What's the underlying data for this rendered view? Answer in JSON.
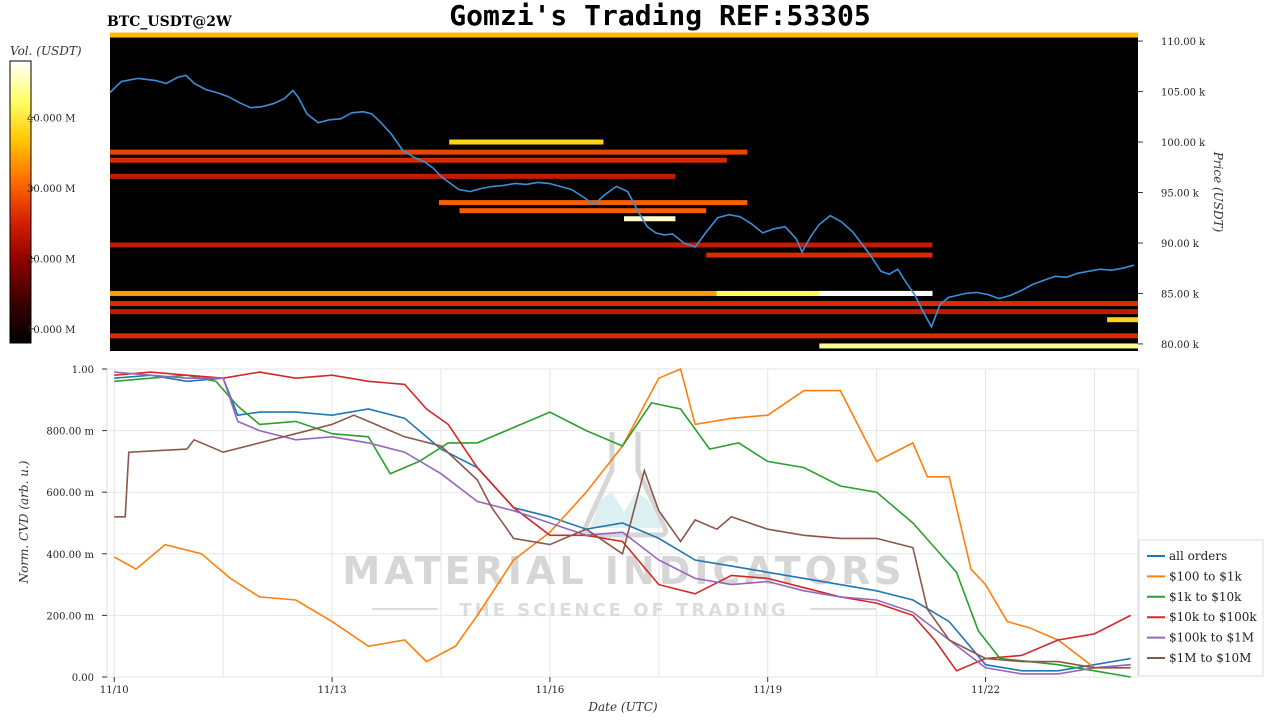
{
  "header": {
    "title": "Gomzi's Trading REF:53305",
    "pair": "BTC_USDT@2W"
  },
  "watermark": {
    "line1": "MATERIAL INDICATORS",
    "line2": "THE SCIENCE OF TRADING"
  },
  "chart_data": [
    {
      "type": "heatmap",
      "colorbar": {
        "label": "Vol. (USDT)",
        "ticks": [
          "10.000 M",
          "20.000 M",
          "30.000 M",
          "40.000 M"
        ],
        "tick_values": [
          10,
          20,
          30,
          40
        ],
        "range": [
          8,
          48
        ],
        "colors": [
          "#000000",
          "#3a0000",
          "#8b0000",
          "#d42000",
          "#ff6a00",
          "#ffc400",
          "#ffff66",
          "#ffffff"
        ]
      },
      "y_axis": {
        "label": "Price (USDT)",
        "ticks": [
          "110.00 k",
          "105.00 k",
          "100.00 k",
          "95.00 k",
          "90.00 k",
          "85.00 k",
          "80.00 k"
        ],
        "tick_values": [
          110,
          105,
          100,
          95,
          90,
          85,
          80
        ],
        "range": [
          79.3,
          110.8
        ]
      },
      "x_range_days": [
        0,
        14.1
      ],
      "price_series": {
        "color": "#3b8fd9",
        "points": [
          [
            0,
            104.9
          ],
          [
            0.2,
            106
          ],
          [
            0.5,
            106.3
          ],
          [
            0.8,
            106.1
          ],
          [
            1.0,
            105.8
          ],
          [
            1.2,
            106.4
          ],
          [
            1.35,
            106.6
          ],
          [
            1.5,
            105.8
          ],
          [
            1.7,
            105.2
          ],
          [
            1.9,
            104.9
          ],
          [
            2.1,
            104.5
          ],
          [
            2.3,
            103.9
          ],
          [
            2.5,
            103.4
          ],
          [
            2.7,
            103.5
          ],
          [
            2.9,
            103.8
          ],
          [
            3.1,
            104.3
          ],
          [
            3.25,
            105.1
          ],
          [
            3.35,
            104.4
          ],
          [
            3.5,
            102.8
          ],
          [
            3.7,
            101.9
          ],
          [
            3.9,
            102.2
          ],
          [
            4.1,
            102.3
          ],
          [
            4.3,
            102.9
          ],
          [
            4.5,
            103.0
          ],
          [
            4.65,
            102.8
          ],
          [
            4.8,
            102.0
          ],
          [
            5.0,
            100.8
          ],
          [
            5.2,
            99.2
          ],
          [
            5.4,
            98.5
          ],
          [
            5.6,
            98.0
          ],
          [
            5.75,
            97.4
          ],
          [
            5.9,
            96.5
          ],
          [
            6.05,
            95.9
          ],
          [
            6.2,
            95.3
          ],
          [
            6.4,
            95.1
          ],
          [
            6.6,
            95.4
          ],
          [
            6.8,
            95.6
          ],
          [
            7.0,
            95.7
          ],
          [
            7.2,
            95.9
          ],
          [
            7.4,
            95.8
          ],
          [
            7.6,
            96.0
          ],
          [
            7.8,
            95.9
          ],
          [
            8.0,
            95.6
          ],
          [
            8.2,
            95.3
          ],
          [
            8.4,
            94.6
          ],
          [
            8.6,
            93.8
          ],
          [
            8.8,
            94.8
          ],
          [
            9.0,
            95.6
          ],
          [
            9.2,
            95.1
          ],
          [
            9.4,
            93.0
          ],
          [
            9.55,
            91.6
          ],
          [
            9.7,
            91.0
          ],
          [
            9.85,
            90.8
          ],
          [
            10.0,
            90.9
          ],
          [
            10.2,
            90.0
          ],
          [
            10.4,
            89.6
          ],
          [
            10.6,
            91.1
          ],
          [
            10.8,
            92.5
          ],
          [
            11.0,
            92.8
          ],
          [
            11.2,
            92.6
          ],
          [
            11.4,
            91.9
          ],
          [
            11.6,
            91.0
          ],
          [
            11.8,
            91.4
          ],
          [
            12.0,
            91.6
          ],
          [
            12.2,
            90.4
          ],
          [
            12.3,
            89.1
          ],
          [
            12.45,
            90.6
          ],
          [
            12.6,
            91.8
          ],
          [
            12.8,
            92.7
          ],
          [
            13.0,
            92.1
          ],
          [
            13.2,
            91.1
          ],
          [
            13.35,
            90.0
          ],
          [
            13.5,
            88.9
          ],
          [
            13.7,
            87.2
          ],
          [
            13.85,
            86.9
          ],
          [
            14.0,
            87.4
          ],
          [
            14.15,
            86.1
          ],
          [
            14.3,
            84.9
          ],
          [
            14.45,
            83.2
          ],
          [
            14.6,
            81.7
          ],
          [
            14.75,
            83.9
          ],
          [
            14.9,
            84.6
          ],
          [
            15.05,
            84.8
          ],
          [
            15.2,
            85.0
          ],
          [
            15.4,
            85.1
          ],
          [
            15.6,
            84.9
          ],
          [
            15.8,
            84.5
          ],
          [
            16.0,
            84.8
          ],
          [
            16.2,
            85.3
          ],
          [
            16.4,
            85.9
          ],
          [
            16.6,
            86.3
          ],
          [
            16.8,
            86.7
          ],
          [
            17.0,
            86.6
          ],
          [
            17.2,
            87.0
          ],
          [
            17.4,
            87.2
          ],
          [
            17.6,
            87.4
          ],
          [
            17.8,
            87.3
          ],
          [
            18.0,
            87.5
          ],
          [
            18.2,
            87.8
          ]
        ],
        "x_scale_note": "points normalized over 0-18.2 span"
      },
      "liquidity_bands": [
        {
          "price": 110.6,
          "start": 0.0,
          "end": 1.0,
          "intensity": 0.7
        },
        {
          "price": 100.0,
          "start": 0.33,
          "end": 0.48,
          "intensity": 0.75
        },
        {
          "price": 99.0,
          "start": 0.0,
          "end": 0.62,
          "intensity": 0.5
        },
        {
          "price": 98.2,
          "start": 0.0,
          "end": 0.6,
          "intensity": 0.45
        },
        {
          "price": 96.6,
          "start": 0.0,
          "end": 0.55,
          "intensity": 0.4
        },
        {
          "price": 94.0,
          "start": 0.32,
          "end": 0.62,
          "intensity": 0.55
        },
        {
          "price": 93.2,
          "start": 0.34,
          "end": 0.58,
          "intensity": 0.55
        },
        {
          "price": 92.4,
          "start": 0.5,
          "end": 0.55,
          "intensity": 0.95
        },
        {
          "price": 89.8,
          "start": 0.0,
          "end": 0.8,
          "intensity": 0.4
        },
        {
          "price": 88.8,
          "start": 0.58,
          "end": 0.8,
          "intensity": 0.45
        },
        {
          "price": 85.0,
          "start": 0.0,
          "end": 0.8,
          "intensity": 0.65
        },
        {
          "price": 85.0,
          "start": 0.59,
          "end": 0.8,
          "intensity": 0.85
        },
        {
          "price": 85.0,
          "start": 0.69,
          "end": 0.8,
          "intensity": 1.0
        },
        {
          "price": 84.0,
          "start": 0.0,
          "end": 1.0,
          "intensity": 0.45
        },
        {
          "price": 83.2,
          "start": 0.0,
          "end": 1.0,
          "intensity": 0.4
        },
        {
          "price": 82.4,
          "start": 0.97,
          "end": 1.0,
          "intensity": 0.75
        },
        {
          "price": 80.8,
          "start": 0.0,
          "end": 1.0,
          "intensity": 0.45
        },
        {
          "price": 79.8,
          "start": 0.69,
          "end": 1.0,
          "intensity": 0.9
        }
      ]
    },
    {
      "type": "line",
      "y_axis": {
        "label": "Norm. CVD (arb. u.)",
        "ticks": [
          "0.00",
          "200.00 m",
          "400.00 m",
          "600.00 m",
          "800.00 m",
          "1.00"
        ],
        "tick_values": [
          0,
          0.2,
          0.4,
          0.6,
          0.8,
          1.0
        ],
        "range": [
          0,
          1.0
        ]
      },
      "x_axis": {
        "label": "Date (UTC)",
        "ticks": [
          "11/10",
          "11/13",
          "11/16",
          "11/19",
          "11/22"
        ],
        "tick_values": [
          0,
          3,
          6,
          9,
          12
        ],
        "range": [
          -0.1,
          14.1
        ]
      },
      "grid": true,
      "legend_position": "bottom-right",
      "series": [
        {
          "name": "all orders",
          "color": "#1f77b4",
          "x": [
            0,
            0.5,
            1,
            1.5,
            1.7,
            2,
            2.5,
            3,
            3.5,
            4,
            4.5,
            5,
            5.5,
            6,
            6.5,
            7,
            7.5,
            8,
            8.5,
            9,
            9.5,
            10,
            10.5,
            11,
            11.5,
            12,
            12.5,
            13,
            13.5,
            14
          ],
          "y": [
            0.97,
            0.98,
            0.96,
            0.97,
            0.85,
            0.86,
            0.86,
            0.85,
            0.87,
            0.84,
            0.74,
            0.68,
            0.55,
            0.52,
            0.48,
            0.5,
            0.45,
            0.38,
            0.36,
            0.34,
            0.32,
            0.3,
            0.28,
            0.25,
            0.18,
            0.04,
            0.02,
            0.02,
            0.04,
            0.06
          ]
        },
        {
          "name": "$100 to $1k",
          "color": "#ff7f0e",
          "x": [
            0,
            0.3,
            0.7,
            1.2,
            1.6,
            2.0,
            2.5,
            3.0,
            3.5,
            4.0,
            4.3,
            4.7,
            5.0,
            5.5,
            6.0,
            6.5,
            7.0,
            7.5,
            7.8,
            8.0,
            8.5,
            9.0,
            9.5,
            10.0,
            10.5,
            11.0,
            11.2,
            11.5,
            11.8,
            12.0,
            12.3,
            12.6,
            13.0,
            13.5,
            14.0
          ],
          "y": [
            0.39,
            0.35,
            0.43,
            0.4,
            0.32,
            0.26,
            0.25,
            0.18,
            0.1,
            0.12,
            0.05,
            0.1,
            0.2,
            0.38,
            0.47,
            0.6,
            0.75,
            0.97,
            1.0,
            0.82,
            0.84,
            0.85,
            0.93,
            0.93,
            0.7,
            0.76,
            0.65,
            0.65,
            0.35,
            0.3,
            0.18,
            0.16,
            0.12,
            0.03,
            0.04
          ]
        },
        {
          "name": "$1k to $10k",
          "color": "#2ca02c",
          "x": [
            0,
            0.5,
            1,
            1.4,
            1.7,
            2,
            2.5,
            3,
            3.5,
            3.8,
            4.2,
            4.6,
            5,
            5.5,
            6,
            6.5,
            7,
            7.4,
            7.8,
            8.2,
            8.6,
            9,
            9.5,
            10,
            10.5,
            11,
            11.3,
            11.6,
            11.9,
            12.2,
            12.6,
            13,
            13.5,
            14
          ],
          "y": [
            0.96,
            0.97,
            0.98,
            0.96,
            0.88,
            0.82,
            0.83,
            0.79,
            0.78,
            0.66,
            0.7,
            0.76,
            0.76,
            0.81,
            0.86,
            0.8,
            0.75,
            0.89,
            0.87,
            0.74,
            0.76,
            0.7,
            0.68,
            0.62,
            0.6,
            0.5,
            0.42,
            0.34,
            0.15,
            0.06,
            0.05,
            0.04,
            0.02,
            0.0
          ]
        },
        {
          "name": "$10k to $100k",
          "color": "#d62728",
          "x": [
            0,
            0.5,
            1,
            1.5,
            2,
            2.5,
            3,
            3.5,
            4,
            4.3,
            4.6,
            5,
            5.5,
            6,
            6.5,
            7,
            7.5,
            8,
            8.5,
            9,
            9.5,
            10,
            10.5,
            11,
            11.3,
            11.6,
            12,
            12.5,
            13,
            13.5,
            14
          ],
          "y": [
            0.98,
            0.99,
            0.98,
            0.97,
            0.99,
            0.97,
            0.98,
            0.96,
            0.95,
            0.87,
            0.82,
            0.68,
            0.55,
            0.46,
            0.46,
            0.44,
            0.3,
            0.27,
            0.33,
            0.32,
            0.29,
            0.26,
            0.24,
            0.2,
            0.12,
            0.02,
            0.06,
            0.07,
            0.12,
            0.14,
            0.2
          ]
        },
        {
          "name": "$100k to $1M",
          "color": "#9467bd",
          "x": [
            0,
            0.5,
            1,
            1.5,
            1.7,
            2,
            2.5,
            3,
            3.5,
            4,
            4.5,
            5,
            5.5,
            6,
            6.5,
            7,
            7.5,
            8,
            8.5,
            9,
            9.5,
            10,
            10.5,
            11,
            11.5,
            12,
            12.5,
            13,
            13.5,
            14
          ],
          "y": [
            0.99,
            0.98,
            0.97,
            0.97,
            0.83,
            0.8,
            0.77,
            0.78,
            0.76,
            0.73,
            0.66,
            0.57,
            0.54,
            0.5,
            0.46,
            0.47,
            0.38,
            0.32,
            0.3,
            0.31,
            0.28,
            0.26,
            0.25,
            0.21,
            0.12,
            0.03,
            0.01,
            0.01,
            0.03,
            0.04
          ]
        },
        {
          "name": "$1M to $10M",
          "color": "#8c564b",
          "x": [
            0,
            0.15,
            0.2,
            1,
            1.1,
            1.5,
            2,
            2.5,
            3,
            3.3,
            3.6,
            4,
            4.5,
            5,
            5.2,
            5.5,
            6,
            6.5,
            7,
            7.3,
            7.5,
            7.8,
            8,
            8.3,
            8.5,
            9,
            9.5,
            10,
            10.5,
            11,
            11.2,
            11.5,
            12,
            12.5,
            13,
            13.5,
            14
          ],
          "y": [
            0.52,
            0.52,
            0.73,
            0.74,
            0.77,
            0.73,
            0.76,
            0.79,
            0.82,
            0.85,
            0.82,
            0.78,
            0.75,
            0.64,
            0.55,
            0.45,
            0.43,
            0.48,
            0.4,
            0.67,
            0.54,
            0.44,
            0.51,
            0.48,
            0.52,
            0.48,
            0.46,
            0.45,
            0.45,
            0.42,
            0.22,
            0.12,
            0.06,
            0.05,
            0.05,
            0.03,
            0.03
          ]
        }
      ]
    }
  ]
}
